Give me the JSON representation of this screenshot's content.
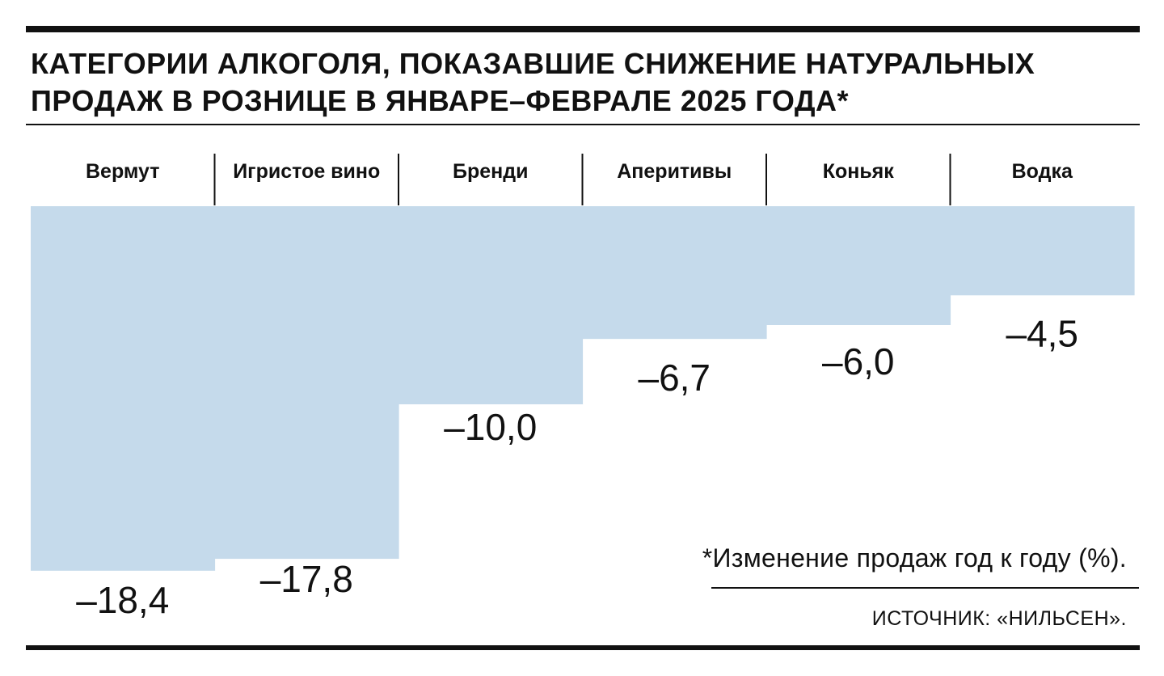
{
  "header": {
    "title_line1": "КАТЕГОРИИ АЛКОГОЛЯ, ПОКАЗАВШИЕ СНИЖЕНИЕ НАТУРАЛЬНЫХ",
    "title_line2": "ПРОДАЖ В РОЗНИЦЕ В ЯНВАРЕ–ФЕВРАЛЕ 2025 ГОДА*"
  },
  "footnote": "*Изменение продаж год к году (%).",
  "source": "ИСТОЧНИК: «НИЛЬСЕН».",
  "chart_data": {
    "type": "bar",
    "orientation": "vertical",
    "direction": "downward",
    "categories": [
      "Вермут",
      "Игристое вино",
      "Бренди",
      "Аперитивы",
      "Коньяк",
      "Водка"
    ],
    "values": [
      -18.4,
      -17.8,
      -10.0,
      -6.7,
      -6.0,
      -4.5
    ],
    "value_labels": [
      "–18,4",
      "–17,8",
      "–10,0",
      "–6,7",
      "–6,0",
      "–4,5"
    ],
    "ylim": [
      -18.4,
      0
    ],
    "grid": false,
    "legend": "none",
    "bar_color": "#c5daeb"
  }
}
